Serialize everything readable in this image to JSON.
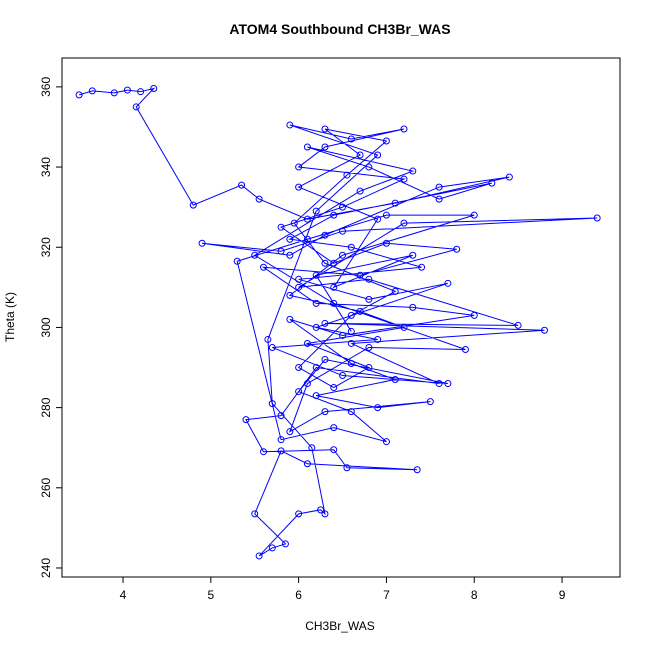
{
  "chart_data": {
    "type": "line",
    "markers": true,
    "title": "ATOM4 Southbound CH3Br_WAS",
    "x_label": "CH3Br_WAS",
    "y_label": "Theta (K)",
    "color": "#0000ff",
    "xlim": [
      3.305,
      9.66
    ],
    "ylim": [
      237.75,
      367.2
    ],
    "xticks": [
      4,
      5,
      6,
      7,
      8,
      9
    ],
    "yticks": [
      240,
      260,
      280,
      300,
      320,
      340,
      360
    ],
    "x": [
      3.5,
      3.65,
      3.9,
      4.05,
      4.2,
      4.35,
      4.15,
      4.8,
      5.35,
      5.55,
      6.1,
      7.1,
      8.4,
      7.6,
      6.3,
      5.9,
      4.9,
      5.8,
      6.5,
      9.4,
      7.2,
      6.0,
      6.8,
      8.5,
      6.3,
      8.8,
      6.6,
      7.6,
      6.2,
      5.8,
      5.4,
      5.6,
      6.4,
      6.55,
      7.35,
      6.1,
      5.8,
      5.5,
      5.85,
      5.7,
      5.55,
      6.0,
      6.25,
      6.3,
      6.15,
      5.7,
      5.65,
      6.2,
      6.9,
      5.9,
      6.6,
      7.2,
      6.3,
      6.0,
      7.2,
      6.5,
      5.8,
      6.4,
      7.0,
      7.8,
      6.7,
      5.6,
      6.2,
      7.3,
      8.0,
      6.5,
      5.9,
      6.6,
      7.1,
      6.2,
      6.9,
      7.5,
      6.3,
      5.9,
      6.1,
      6.8,
      7.9,
      6.4,
      5.5,
      6.7,
      7.3,
      6.1,
      6.8,
      7.6,
      8.2,
      6.4,
      5.9,
      6.6,
      7.4,
      6.0,
      6.8,
      7.7,
      6.2,
      6.9,
      5.7,
      6.5,
      7.7,
      6.3,
      6.0,
      6.6,
      7.0,
      6.4,
      5.8,
      5.3,
      6.1,
      7.0,
      8.0,
      6.5,
      5.9,
      6.7,
      7.2,
      6.1,
      6.8,
      6.4,
      6.0,
      6.6,
      7.1,
      6.3,
      5.95,
      6.55,
      7.0,
      6.3,
      6.7,
      6.0,
      6.9,
      6.4,
      7.3,
      6.2,
      6.6
    ],
    "y": [
      358,
      359,
      358.5,
      359.2,
      358.8,
      359.6,
      355,
      330.5,
      335.5,
      332,
      327,
      331,
      337.5,
      335,
      323,
      318,
      321,
      319,
      324,
      327.3,
      326,
      310,
      312,
      300.5,
      301,
      299.3,
      296,
      286,
      290,
      278,
      277,
      269,
      269.5,
      265,
      264.5,
      266,
      269.2,
      253.5,
      246,
      245,
      243,
      253.5,
      254.5,
      253.5,
      270,
      281,
      297,
      329,
      343,
      350.5,
      347,
      349.5,
      345,
      340,
      337,
      330,
      325,
      316,
      321,
      319.5,
      313,
      315,
      306,
      305,
      303,
      298,
      302,
      291,
      287,
      283,
      280,
      281.5,
      279,
      274,
      286,
      295,
      294.5,
      306,
      318,
      334,
      339,
      345,
      340,
      332,
      336,
      328,
      322,
      320,
      315,
      312,
      307,
      311,
      300,
      297,
      295,
      288,
      286,
      292,
      284,
      279,
      271.5,
      275,
      272,
      316.5,
      322,
      328,
      328,
      318,
      308,
      304,
      300,
      296,
      290,
      285,
      290,
      303,
      309,
      316,
      326,
      338,
      346.5,
      349.5,
      343,
      335,
      327,
      310,
      318,
      313,
      299
    ]
  }
}
